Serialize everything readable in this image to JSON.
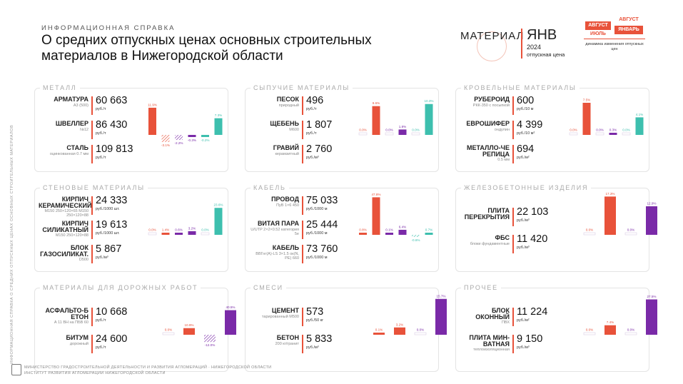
{
  "header": {
    "subtitle": "ИНФОРМАЦИОННАЯ СПРАВКА",
    "title": "О средних отпускных ценах основных строительных материалов в Нижегородской области",
    "side_text": "ИНФОРМАЦИОННАЯ СПРАВКА О СРЕДНИХ ОТПУСКНЫХ ЦЕНАХ ОСНОВНЫХ СТРОИТЕЛЬНЫХ МАТЕРИАЛОВ"
  },
  "legend": {
    "material": "МАТЕРИАЛ",
    "month": "ЯНВ",
    "year": "2024",
    "price_label": "отпускная цена",
    "aug1": "АВГУСТ",
    "jul": "ИЮЛЬ",
    "aug2": "АВГУСТ",
    "jan": "ЯНВАРЬ",
    "dynamics": "динамика изменения отпускных цен"
  },
  "colors": {
    "accent": "#e8523a",
    "teal": "#3dbfae",
    "purple": "#7a2aa8",
    "zero": "#c7b6d6"
  },
  "chart_data": [
    {
      "type": "bar",
      "title": "МЕТАЛЛ",
      "series_labels": [
        "11.9%",
        "-3.1%",
        "-2.2%",
        "-0.3%",
        "-0.2%",
        "7.3%"
      ],
      "values": [
        11.9,
        -3.1,
        -2.2,
        -0.3,
        -0.2,
        7.3
      ],
      "colors": [
        "#e8523a",
        "#e8523a",
        "#7a2aa8",
        "#7a2aa8",
        "#3dbfae",
        "#3dbfae"
      ],
      "hatched": [
        false,
        true,
        true,
        false,
        false,
        false
      ],
      "scale": 3.2,
      "items": [
        {
          "name": "АРМАТУРА",
          "sub": "А3 (500)",
          "price": "60 663",
          "unit": "руб./т"
        },
        {
          "name": "ШВЕЛЛЕР",
          "sub": "№12",
          "price": "86 430",
          "unit": "руб./т"
        },
        {
          "name": "СТАЛЬ",
          "sub": "оцинкованная 0.7 мм",
          "price": "109 813",
          "unit": "руб./т"
        }
      ]
    },
    {
      "type": "bar",
      "title": "СЫПУЧИЕ МАТЕРИАЛЫ",
      "series_labels": [
        "0.0%",
        "9.6%",
        "0.0%",
        "1.8%",
        "0.0%",
        "10.3%"
      ],
      "values": [
        0.0,
        9.6,
        0.0,
        1.8,
        0.0,
        10.3
      ],
      "colors": [
        "#e8523a",
        "#e8523a",
        "#7a2aa8",
        "#7a2aa8",
        "#3dbfae",
        "#3dbfae"
      ],
      "hatched": [
        false,
        false,
        false,
        false,
        false,
        false
      ],
      "scale": 4.2,
      "items": [
        {
          "name": "ПЕСОК",
          "sub": "природный",
          "price": "496",
          "unit": "руб./т"
        },
        {
          "name": "ЩЕБЕНЬ",
          "sub": "М600",
          "price": "1 807",
          "unit": "руб./т"
        },
        {
          "name": "ГРАВИЙ",
          "sub": "керамзитный",
          "price": "2 760",
          "unit": "руб./м³"
        }
      ]
    },
    {
      "type": "bar",
      "title": "КРОВЕЛЬНЫЕ МАТЕРИАЛЫ",
      "series_labels": [
        "0.0%",
        "7.5%",
        "0.0%",
        "0.3%",
        "0.0%",
        "4.1%"
      ],
      "values": [
        0.0,
        7.5,
        0.0,
        0.3,
        0.0,
        4.1
      ],
      "colors": [
        "#e8523a",
        "#e8523a",
        "#7a2aa8",
        "#7a2aa8",
        "#3dbfae",
        "#3dbfae"
      ],
      "hatched": [
        false,
        false,
        false,
        false,
        false,
        false
      ],
      "scale": 6.0,
      "items": [
        {
          "name": "РУБЕРОИД",
          "sub": "РКК-350 с посыпкой",
          "price": "600",
          "unit": "руб./10 м"
        },
        {
          "name": "ЕВРОШИФЕР",
          "sub": "ондулин",
          "price": "4 399",
          "unit": "руб./10 м²"
        },
        {
          "name": "МЕТАЛЛО-ЧЕРЕПИЦА",
          "sub": "0.5 мм",
          "price": "694",
          "unit": "руб./м²"
        }
      ]
    },
    {
      "type": "bar",
      "title": "СТЕНОВЫЕ МАТЕРИАЛЫ",
      "series_labels": [
        "0.0%",
        "1.4%",
        "0.6%",
        "3.2%",
        "0.0%",
        "23.6%"
      ],
      "values": [
        0.0,
        1.4,
        0.6,
        3.2,
        0.0,
        23.6
      ],
      "colors": [
        "#e8523a",
        "#e8523a",
        "#7a2aa8",
        "#7a2aa8",
        "#3dbfae",
        "#3dbfae"
      ],
      "hatched": [
        false,
        false,
        false,
        false,
        false,
        false
      ],
      "scale": 1.6,
      "items": [
        {
          "name": "КИРПИЧ КЕРАМИЧЕСКИЙ",
          "sub": "М150 250×120×65 М150 250×120×88",
          "price": "24 333",
          "unit": "руб./1000 шт."
        },
        {
          "name": "КИРПИЧ СИЛИКАТНЫЙ",
          "sub": "М150 250×120×88",
          "price": "19 613",
          "unit": "руб./1000 шт."
        },
        {
          "name": "БЛОК ГАЗОСИЛИКАТ.",
          "sub": "D500",
          "price": "5 867",
          "unit": "руб./м³"
        }
      ]
    },
    {
      "type": "bar",
      "title": "КАБЕЛЬ",
      "series_labels": [
        "0.8%",
        "47.8%",
        "0.1%",
        "6.4%",
        "-0.6%",
        "0.7%"
      ],
      "values": [
        0.8,
        47.8,
        0.1,
        6.4,
        -0.6,
        0.7
      ],
      "colors": [
        "#e8523a",
        "#e8523a",
        "#7a2aa8",
        "#7a2aa8",
        "#3dbfae",
        "#3dbfae"
      ],
      "hatched": [
        false,
        false,
        false,
        false,
        true,
        false
      ],
      "scale": 1.1,
      "items": [
        {
          "name": "ПРОВОД",
          "sub": "ПуВ 1×6 450",
          "price": "75 033",
          "unit": "руб./1000 м"
        },
        {
          "name": "ВИТАЯ ПАРА",
          "sub": "U/UTP 2×2×0.52 категория 5е",
          "price": "25 444",
          "unit": "руб./1000 м"
        },
        {
          "name": "КАБЕЛЬ",
          "sub": "ВВГнг(А)-LS 3×1.5 ок(N, PE) 660",
          "price": "73 760",
          "unit": "руб./1000 м"
        }
      ]
    },
    {
      "type": "bar",
      "title": "ЖЕЛЕЗОБЕТОННЫЕ ИЗДЕЛИЯ",
      "series_labels": [
        "0.0%",
        "17.3%",
        "0.0%",
        "12.9%"
      ],
      "values": [
        0.0,
        17.3,
        0.0,
        12.9
      ],
      "colors": [
        "#e8523a",
        "#e8523a",
        "#7a2aa8",
        "#7a2aa8"
      ],
      "hatched": [
        false,
        false,
        false,
        false
      ],
      "scale": 3.1,
      "items": [
        {
          "name": "ПЛИТА ПЕРЕКРЫТИЯ",
          "sub": "",
          "price": "22 103",
          "unit": "руб./м³"
        },
        {
          "name": "ФБС",
          "sub": "блоки фундаментные",
          "price": "11 420",
          "unit": "руб./м³"
        }
      ]
    },
    {
      "type": "bar",
      "title": "МАТЕРИАЛЫ ДЛЯ ДОРОЖНЫХ РАБОТ",
      "series_labels": [
        "0.0%",
        "10.9%",
        "-12.0%",
        "40.5%"
      ],
      "values": [
        0.0,
        10.9,
        -12.0,
        40.5
      ],
      "colors": [
        "#e8523a",
        "#e8523a",
        "#7a2aa8",
        "#7a2aa8"
      ],
      "hatched": [
        false,
        false,
        true,
        false
      ],
      "scale": 0.85,
      "items": [
        {
          "name": "АСФАЛЬТО-БЕТОН",
          "sub": "А 11 ВН на ПБВ 60",
          "price": "10 668",
          "unit": "руб./т"
        },
        {
          "name": "БИТУМ",
          "sub": "дорожный",
          "price": "24 600",
          "unit": "руб./т"
        }
      ]
    },
    {
      "type": "bar",
      "title": "СМЕСИ",
      "series_labels": [
        "0.1%",
        "3.2%",
        "0.0%",
        "15.7%"
      ],
      "values": [
        0.1,
        3.2,
        0.0,
        15.7
      ],
      "colors": [
        "#e8523a",
        "#e8523a",
        "#7a2aa8",
        "#7a2aa8"
      ],
      "hatched": [
        false,
        false,
        false,
        false
      ],
      "scale": 3.2,
      "items": [
        {
          "name": "ЦЕМЕНТ",
          "sub": "тарированный М500",
          "price": "573",
          "unit": "руб./50 кг"
        },
        {
          "name": "БЕТОН",
          "sub": "200 кг/гранит",
          "price": "5 833",
          "unit": "руб./м³"
        }
      ]
    },
    {
      "type": "bar",
      "title": "ПРОЧЕЕ",
      "series_labels": [
        "0.0%",
        "7.4%",
        "0.0%",
        "27.5%"
      ],
      "values": [
        0.0,
        7.4,
        0.0,
        27.5
      ],
      "colors": [
        "#e8523a",
        "#e8523a",
        "#7a2aa8",
        "#7a2aa8"
      ],
      "hatched": [
        false,
        false,
        false,
        false
      ],
      "scale": 1.8,
      "items": [
        {
          "name": "БЛОК ОКОННЫЙ",
          "sub": "ПВХ",
          "price": "11 224",
          "unit": "руб./м²"
        },
        {
          "name": "ПЛИТА МИН-ВАТНАЯ",
          "sub": "теплоизоляционная",
          "price": "9 150",
          "unit": "руб./м³"
        }
      ]
    }
  ],
  "footer": {
    "line1": "МИНИСТЕРСТВО ГРАДОСТРОИТЕЛЬНОЙ ДЕЯТЕЛЬНОСТИ И РАЗВИТИЯ АГЛОМЕРАЦИЙ · НИЖЕГОРОДСКОЙ ОБЛАСТИ",
    "line2": "ИНСТИТУТ РАЗВИТИЯ АГЛОМЕРАЦИИ НИЖЕГОРОДСКОЙ ОБЛАСТИ"
  }
}
